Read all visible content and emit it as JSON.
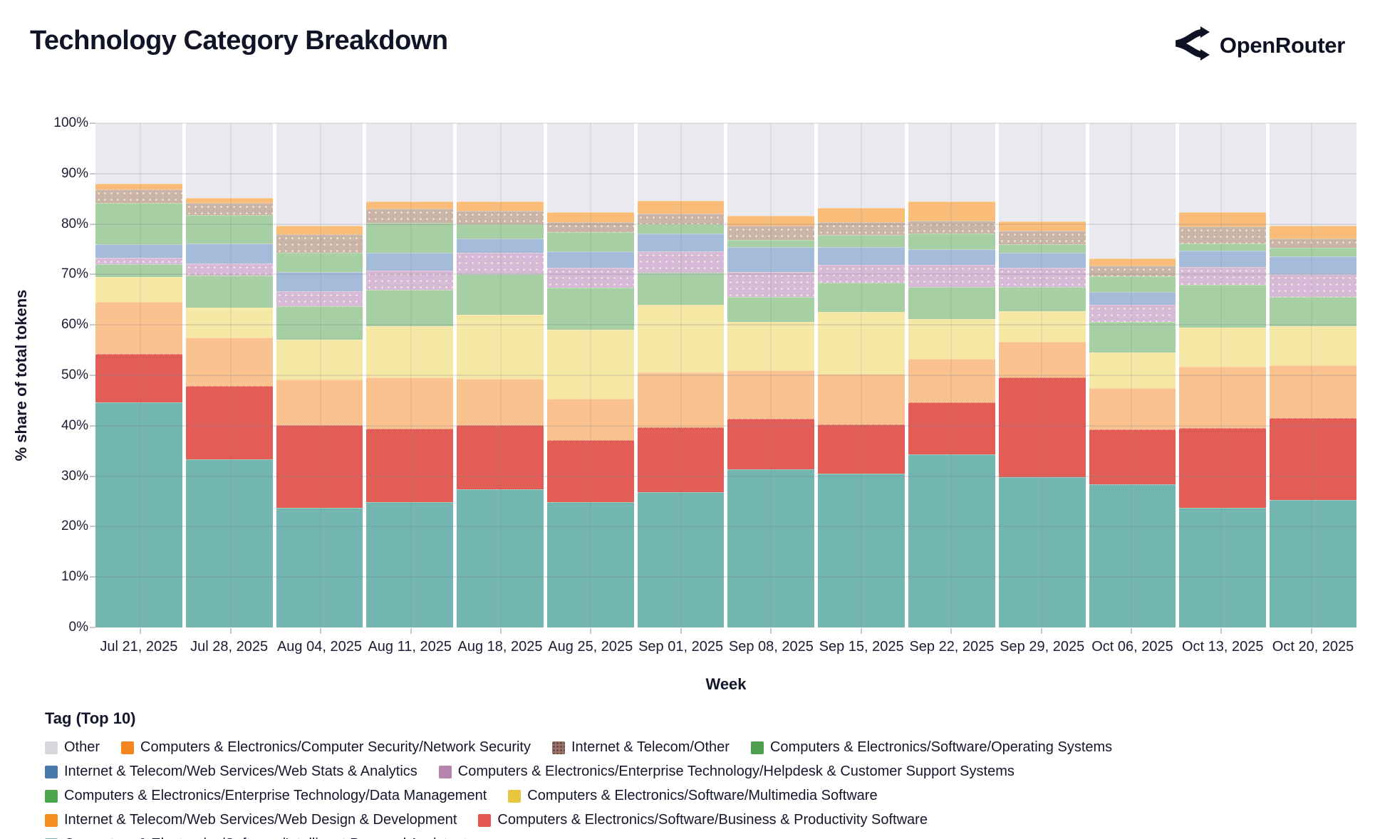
{
  "header": {
    "title": "Technology Category Breakdown",
    "brand": "OpenRouter"
  },
  "chart_data": {
    "type": "bar",
    "stacked": true,
    "title": "Technology Category Breakdown",
    "xlabel": "Week",
    "ylabel": "% share of total tokens",
    "ylim": [
      0,
      100
    ],
    "yticks": [
      "0%",
      "10%",
      "20%",
      "30%",
      "40%",
      "50%",
      "60%",
      "70%",
      "80%",
      "90%",
      "100%"
    ],
    "grid": true,
    "legend_title": "Tag (Top 10)",
    "legend_position": "bottom",
    "categories": [
      "Jul 21, 2025",
      "Jul 28, 2025",
      "Aug 04, 2025",
      "Aug 11, 2025",
      "Aug 18, 2025",
      "Aug 25, 2025",
      "Sep 01, 2025",
      "Sep 08, 2025",
      "Sep 15, 2025",
      "Sep 22, 2025",
      "Sep 29, 2025",
      "Oct 06, 2025",
      "Oct 13, 2025",
      "Oct 20, 2025"
    ],
    "series_note": "series listed bottom-to-top of stack; values are % share of total tokens",
    "series": [
      {
        "key": "intelligent-personal-assistants",
        "name": "Computers & Electronics/Software/Intelligent Personal Assistants",
        "bar_color": "#72b5b1",
        "legend_color": "#6fb3ae",
        "values": [
          44.6,
          33.4,
          23.7,
          24.9,
          27.4,
          24.8,
          26.9,
          31.4,
          30.5,
          34.3,
          29.8,
          28.4,
          23.7,
          25.3
        ]
      },
      {
        "key": "business-productivity-software",
        "name": "Computers & Electronics/Software/Business & Productivity Software",
        "bar_color": "#e25d56",
        "legend_color": "#e1564f",
        "values": [
          9.6,
          14.5,
          16.4,
          14.5,
          12.7,
          12.3,
          12.8,
          10.0,
          9.8,
          10.3,
          19.8,
          10.9,
          15.8,
          16.2
        ]
      },
      {
        "key": "web-design-development",
        "name": "Internet & Telecom/Web Services/Web Design & Development",
        "bar_color": "#f9c28e",
        "legend_color": "#f68e1f",
        "values": [
          10.3,
          9.6,
          9.1,
          10.2,
          9.2,
          8.2,
          10.9,
          9.6,
          10.0,
          8.6,
          7.0,
          8.2,
          12.2,
          10.5
        ]
      },
      {
        "key": "multimedia-software",
        "name": "Computers & Electronics/Software/Multimedia Software",
        "bar_color": "#f5e7a4",
        "legend_color": "#e9c63f",
        "values": [
          5.0,
          5.9,
          7.9,
          10.1,
          12.7,
          13.7,
          13.4,
          9.6,
          12.3,
          8.0,
          6.1,
          7.0,
          7.8,
          7.7
        ]
      },
      {
        "key": "data-management",
        "name": "Computers & Electronics/Enterprise Technology/Data Management",
        "bar_color": "#a6cfa3",
        "legend_color": "#4ca64c",
        "values": [
          2.5,
          6.4,
          6.6,
          7.3,
          8.1,
          8.4,
          6.3,
          4.9,
          5.8,
          6.3,
          4.8,
          6.1,
          8.4,
          5.8
        ]
      },
      {
        "key": "helpdesk-customer-support",
        "name": "Computers & Electronics/Enterprise Technology/Helpdesk & Customer Support Systems",
        "bar_color": "#d6b9d7",
        "legend_color": "#b583ac",
        "pattern": "dots",
        "values": [
          1.3,
          2.4,
          3.0,
          3.8,
          4.2,
          3.9,
          4.3,
          5.0,
          3.5,
          4.4,
          3.8,
          3.4,
          3.6,
          4.6
        ]
      },
      {
        "key": "web-stats-analytics",
        "name": "Internet & Telecom/Web Services/Web Stats & Analytics",
        "bar_color": "#a4bbd9",
        "legend_color": "#4678ae",
        "values": [
          2.7,
          3.9,
          3.8,
          3.5,
          2.8,
          3.3,
          3.5,
          4.9,
          3.5,
          3.1,
          3.0,
          2.5,
          3.2,
          3.5
        ]
      },
      {
        "key": "operating-systems",
        "name": "Computers & Electronics/Software/Operating Systems",
        "bar_color": "#a6cfa3",
        "legend_color": "#4d9e4d",
        "values": [
          8.2,
          5.7,
          3.8,
          5.9,
          2.8,
          3.8,
          1.8,
          1.4,
          2.4,
          3.1,
          1.7,
          3.1,
          1.4,
          1.7
        ]
      },
      {
        "key": "internet-telecom-other",
        "name": "Internet & Telecom/Other",
        "bar_color": "#cab4a7",
        "legend_color": "#9b7365",
        "pattern": "dots",
        "legend_pattern": "dots",
        "values": [
          2.7,
          2.4,
          3.7,
          2.8,
          2.7,
          2.0,
          2.2,
          2.9,
          2.6,
          2.5,
          2.7,
          2.2,
          3.4,
          1.8
        ]
      },
      {
        "key": "network-security",
        "name": "Computers & Electronics/Computer Security/Network Security",
        "bar_color": "#fabd79",
        "legend_color": "#f5861f",
        "values": [
          1.1,
          1.0,
          1.7,
          1.5,
          1.9,
          1.9,
          2.5,
          1.9,
          2.8,
          3.9,
          1.8,
          1.4,
          2.8,
          2.6
        ]
      },
      {
        "key": "other",
        "name": "Other",
        "bar_color": "#e9e9ef",
        "legend_color": "#d7d7dd",
        "values": [
          12.0,
          14.8,
          20.3,
          15.5,
          15.5,
          17.7,
          15.4,
          18.4,
          16.8,
          15.5,
          19.5,
          26.8,
          17.7,
          20.3
        ]
      }
    ],
    "legend_order_keys": [
      "other",
      "network-security",
      "internet-telecom-other",
      "operating-systems",
      "web-stats-analytics",
      "helpdesk-customer-support",
      "data-management",
      "multimedia-software",
      "web-design-development",
      "business-productivity-software",
      "intelligent-personal-assistants"
    ]
  }
}
